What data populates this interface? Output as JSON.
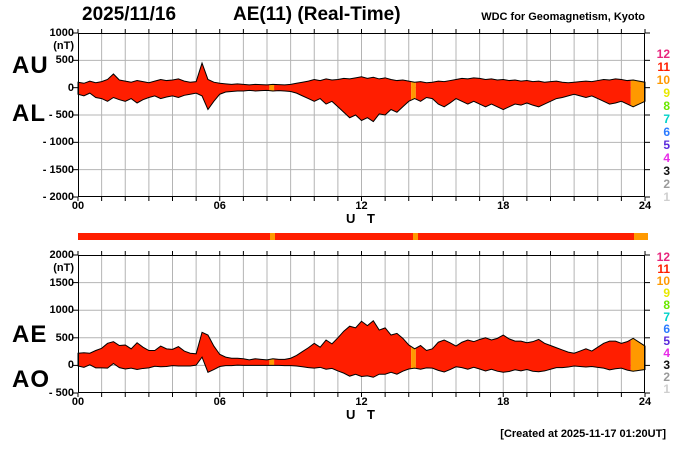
{
  "title": {
    "date": "2025/11/16",
    "main": "AE(11) (Real-Time)",
    "credit": "WDC for Geomagnetism, Kyoto"
  },
  "footer": {
    "created": "[Created at 2025-11-17 01:20UT]"
  },
  "legend": {
    "meaning": "number of available stations",
    "items": [
      {
        "label": "12",
        "color": "#e8257d"
      },
      {
        "label": "11",
        "color": "#ff1e00"
      },
      {
        "label": "10",
        "color": "#ff9900"
      },
      {
        "label": "9",
        "color": "#e8e800"
      },
      {
        "label": "8",
        "color": "#6ae800"
      },
      {
        "label": "7",
        "color": "#00d2c8"
      },
      {
        "label": "6",
        "color": "#2b7bff"
      },
      {
        "label": "5",
        "color": "#5b2bdc"
      },
      {
        "label": "4",
        "color": "#e82be8"
      },
      {
        "label": "3",
        "color": "#111111"
      },
      {
        "label": "2",
        "color": "#9a9a9a"
      },
      {
        "label": "1",
        "color": "#cfcfcf"
      }
    ]
  },
  "colors": {
    "grid": "#b4b4b4",
    "axis": "#000000",
    "trace_outline": "#000000",
    "background": "#ffffff"
  },
  "chart_data": {
    "type": "area",
    "x_label": "U T",
    "x_ticks": [
      "00",
      "06",
      "12",
      "18",
      "24"
    ],
    "x_tick_hours": [
      0,
      6,
      12,
      18,
      24
    ],
    "x_start": 0,
    "x_end": 24,
    "x_step_hours": 0.25,
    "grid": "on",
    "panels": [
      {
        "name": "AU-AL",
        "left_labels": [
          "AU",
          "AL"
        ],
        "unit": "(nT)",
        "ylim": [
          -2000,
          1000
        ],
        "yticks": [
          1000,
          500,
          0,
          -500,
          -1000,
          -1500,
          -2000
        ],
        "upper_series": "AU",
        "lower_series": "AL"
      },
      {
        "name": "AE-AO",
        "left_labels": [
          "AE",
          "AO"
        ],
        "unit": "(nT)",
        "ylim": [
          -500,
          2000
        ],
        "yticks": [
          2000,
          1500,
          1000,
          500,
          0,
          -500
        ],
        "upper_series": "AE",
        "lower_series": "AO"
      }
    ],
    "series": [
      {
        "name": "AU",
        "values": [
          100,
          80,
          120,
          90,
          110,
          150,
          250,
          140,
          120,
          100,
          130,
          110,
          90,
          120,
          150,
          130,
          140,
          160,
          120,
          100,
          110,
          450,
          150,
          100,
          80,
          70,
          60,
          70,
          60,
          50,
          60,
          55,
          50,
          60,
          55,
          50,
          60,
          80,
          100,
          120,
          150,
          130,
          160,
          140,
          150,
          170,
          160,
          180,
          200,
          170,
          190,
          160,
          180,
          150,
          130,
          140,
          120,
          100,
          110,
          90,
          100,
          120,
          110,
          130,
          150,
          170,
          160,
          180,
          170,
          150,
          160,
          140,
          150,
          130,
          140,
          120,
          130,
          110,
          120,
          100,
          110,
          120,
          100,
          90,
          100,
          110,
          120,
          110,
          130,
          150,
          140,
          160,
          150,
          130,
          140,
          120,
          100
        ]
      },
      {
        "name": "AL",
        "values": [
          -120,
          -150,
          -100,
          -180,
          -200,
          -250,
          -180,
          -220,
          -250,
          -200,
          -280,
          -220,
          -180,
          -150,
          -200,
          -170,
          -150,
          -180,
          -140,
          -120,
          -100,
          -150,
          -400,
          -250,
          -120,
          -80,
          -70,
          -60,
          -60,
          -50,
          -60,
          -55,
          -50,
          -60,
          -55,
          -60,
          -70,
          -100,
          -150,
          -200,
          -250,
          -200,
          -300,
          -250,
          -350,
          -450,
          -550,
          -500,
          -600,
          -550,
          -620,
          -480,
          -500,
          -400,
          -450,
          -350,
          -250,
          -200,
          -250,
          -180,
          -200,
          -300,
          -350,
          -280,
          -200,
          -250,
          -300,
          -250,
          -300,
          -350,
          -300,
          -350,
          -400,
          -350,
          -300,
          -320,
          -280,
          -320,
          -350,
          -300,
          -250,
          -200,
          -180,
          -150,
          -120,
          -150,
          -180,
          -150,
          -200,
          -250,
          -300,
          -280,
          -250,
          -300,
          -350,
          -300,
          -250
        ]
      },
      {
        "name": "AE",
        "values": [
          220,
          230,
          220,
          270,
          310,
          400,
          430,
          360,
          370,
          300,
          410,
          330,
          270,
          270,
          350,
          300,
          290,
          340,
          260,
          220,
          210,
          600,
          550,
          350,
          200,
          150,
          130,
          130,
          120,
          100,
          120,
          110,
          100,
          120,
          110,
          110,
          130,
          180,
          250,
          320,
          400,
          330,
          460,
          390,
          500,
          620,
          710,
          680,
          800,
          720,
          810,
          640,
          680,
          550,
          580,
          490,
          370,
          300,
          360,
          270,
          300,
          420,
          460,
          410,
          350,
          420,
          460,
          430,
          470,
          500,
          460,
          490,
          550,
          480,
          440,
          440,
          410,
          430,
          470,
          400,
          360,
          320,
          280,
          240,
          220,
          260,
          300,
          260,
          330,
          400,
          440,
          440,
          400,
          430,
          490,
          420,
          350
        ]
      },
      {
        "name": "AO",
        "values": [
          -10,
          -35,
          10,
          -45,
          -45,
          -50,
          35,
          -40,
          -65,
          -50,
          -75,
          -55,
          -45,
          -15,
          -25,
          -20,
          -5,
          -10,
          -10,
          -10,
          5,
          150,
          -125,
          -75,
          -20,
          -5,
          -5,
          5,
          0,
          0,
          0,
          0,
          0,
          0,
          0,
          -5,
          -5,
          -10,
          -25,
          -40,
          -50,
          -35,
          -70,
          -55,
          -100,
          -140,
          -195,
          -160,
          -200,
          -190,
          -215,
          -160,
          -160,
          -125,
          -160,
          -105,
          -65,
          -50,
          -70,
          -45,
          -50,
          -90,
          -120,
          -75,
          -25,
          -40,
          -70,
          -35,
          -65,
          -100,
          -70,
          -105,
          -125,
          -110,
          -80,
          -100,
          -75,
          -105,
          -115,
          -100,
          -70,
          -40,
          -40,
          -30,
          -10,
          -20,
          -30,
          -20,
          -35,
          -50,
          -80,
          -60,
          -50,
          -85,
          -105,
          -90,
          -75
        ]
      }
    ],
    "station_count_segments": [
      {
        "start": 0,
        "end": 8.1,
        "count": 11
      },
      {
        "start": 8.1,
        "end": 8.3,
        "count": 10
      },
      {
        "start": 8.3,
        "end": 14.1,
        "count": 11
      },
      {
        "start": 14.1,
        "end": 14.3,
        "count": 10
      },
      {
        "start": 14.3,
        "end": 23.4,
        "count": 11
      },
      {
        "start": 23.4,
        "end": 24,
        "count": 10
      }
    ]
  }
}
